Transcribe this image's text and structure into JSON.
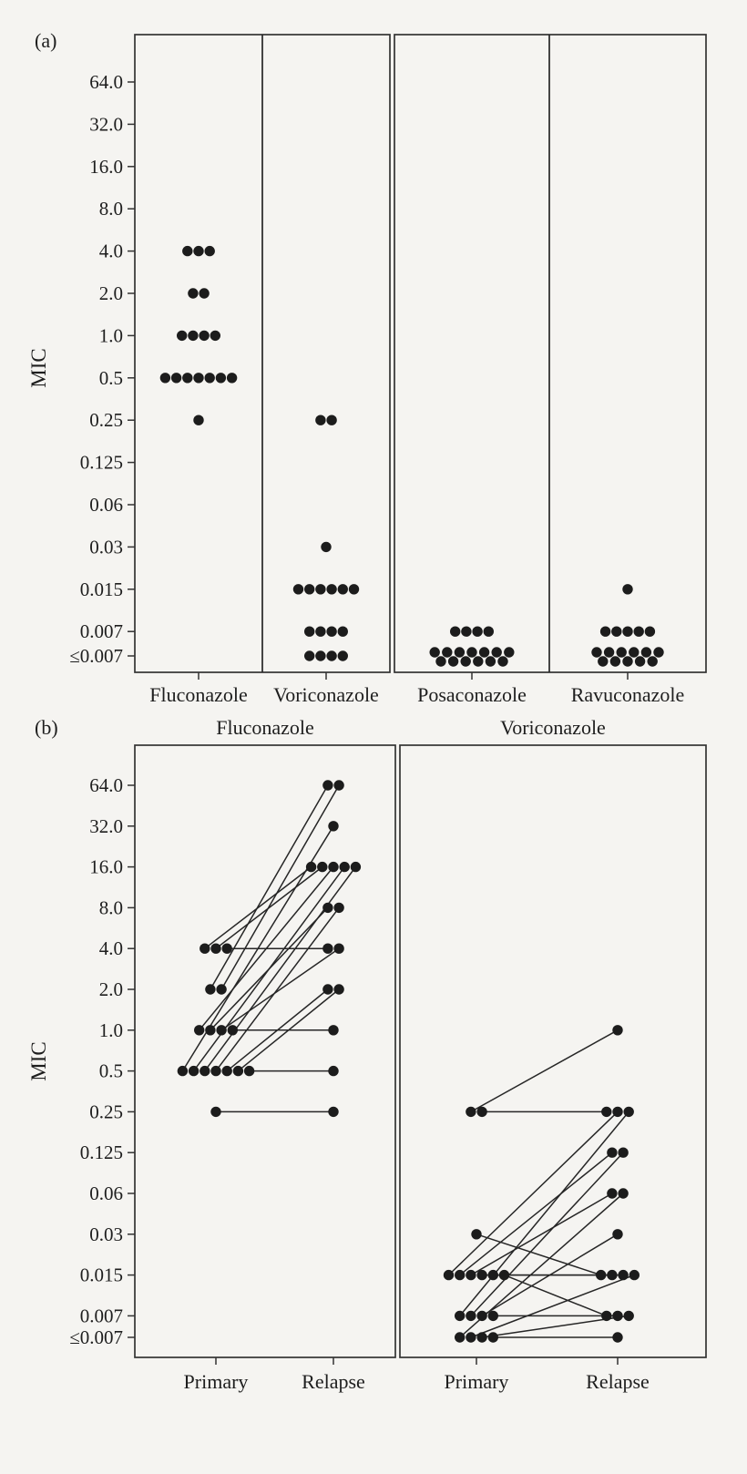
{
  "figure": {
    "panel_a_label": "(a)",
    "panel_b_label": "(b)"
  },
  "mic_levels": [
    "64.0",
    "32.0",
    "16.0",
    "8.0",
    "4.0",
    "2.0",
    "1.0",
    "0.5",
    "0.25",
    "0.125",
    "0.06",
    "0.03",
    "0.015",
    "0.007",
    "≤0.007"
  ],
  "colors": {
    "background": "#f5f4f1",
    "dot": "#1c1c1c",
    "line": "#262626",
    "axis": "#333333"
  },
  "chart_data": [
    {
      "panel": "a",
      "type": "scatter",
      "title": "",
      "ylabel": "MIC",
      "xlabel": "",
      "y_scale": "log2-categorical",
      "y_tick_labels": [
        "64.0",
        "32.0",
        "16.0",
        "8.0",
        "4.0",
        "2.0",
        "1.0",
        "0.5",
        "0.25",
        "0.125",
        "0.06",
        "0.03",
        "0.015",
        "0.007",
        "≤0.007"
      ],
      "groups": [
        {
          "label": "Fluconazole",
          "distribution": [
            {
              "mic": "4.0",
              "n": 3
            },
            {
              "mic": "2.0",
              "n": 2
            },
            {
              "mic": "1.0",
              "n": 4
            },
            {
              "mic": "0.5",
              "n": 7
            },
            {
              "mic": "0.25",
              "n": 1
            }
          ]
        },
        {
          "label": "Voriconazole",
          "distribution": [
            {
              "mic": "0.25",
              "n": 2
            },
            {
              "mic": "0.03",
              "n": 1
            },
            {
              "mic": "0.015",
              "n": 6
            },
            {
              "mic": "0.007",
              "n": 4
            },
            {
              "mic": "≤0.007",
              "n": 4
            }
          ]
        },
        {
          "label": "Posaconazole",
          "distribution": [
            {
              "mic": "0.007",
              "n": 4
            },
            {
              "mic": "≤0.007",
              "n": 13
            }
          ]
        },
        {
          "label": "Ravuconazole",
          "distribution": [
            {
              "mic": "0.015",
              "n": 1
            },
            {
              "mic": "0.007",
              "n": 5
            },
            {
              "mic": "≤0.007",
              "n": 11
            }
          ]
        }
      ]
    },
    {
      "panel": "b",
      "type": "paired-scatter",
      "title": "",
      "ylabel": "MIC",
      "x_categories": [
        "Primary",
        "Relapse"
      ],
      "y_tick_labels": [
        "64.0",
        "32.0",
        "16.0",
        "8.0",
        "4.0",
        "2.0",
        "1.0",
        "0.5",
        "0.25",
        "0.125",
        "0.06",
        "0.03",
        "0.015",
        "0.007",
        "≤0.007"
      ],
      "groups": [
        {
          "label": "Fluconazole",
          "pairs": [
            [
              "2.0",
              "64.0"
            ],
            [
              "2.0",
              "64.0"
            ],
            [
              "0.5",
              "32.0"
            ],
            [
              "4.0",
              "16.0"
            ],
            [
              "4.0",
              "16.0"
            ],
            [
              "1.0",
              "16.0"
            ],
            [
              "0.5",
              "16.0"
            ],
            [
              "0.5",
              "16.0"
            ],
            [
              "1.0",
              "8.0"
            ],
            [
              "0.5",
              "8.0"
            ],
            [
              "4.0",
              "4.0"
            ],
            [
              "1.0",
              "4.0"
            ],
            [
              "0.5",
              "2.0"
            ],
            [
              "0.5",
              "2.0"
            ],
            [
              "1.0",
              "1.0"
            ],
            [
              "0.5",
              "0.5"
            ],
            [
              "0.25",
              "0.25"
            ]
          ]
        },
        {
          "label": "Voriconazole",
          "pairs": [
            [
              "0.25",
              "1.0"
            ],
            [
              "0.25",
              "0.25"
            ],
            [
              "0.015",
              "0.25"
            ],
            [
              "0.007",
              "0.25"
            ],
            [
              "0.015",
              "0.125"
            ],
            [
              "0.007",
              "0.125"
            ],
            [
              "0.015",
              "0.06"
            ],
            [
              "≤0.007",
              "0.06"
            ],
            [
              "0.007",
              "0.03"
            ],
            [
              "0.03",
              "0.015"
            ],
            [
              "0.015",
              "0.015"
            ],
            [
              "0.015",
              "0.015"
            ],
            [
              "≤0.007",
              "0.015"
            ],
            [
              "0.015",
              "0.007"
            ],
            [
              "0.007",
              "0.007"
            ],
            [
              "≤0.007",
              "0.007"
            ],
            [
              "≤0.007",
              "≤0.007"
            ]
          ]
        }
      ]
    }
  ]
}
